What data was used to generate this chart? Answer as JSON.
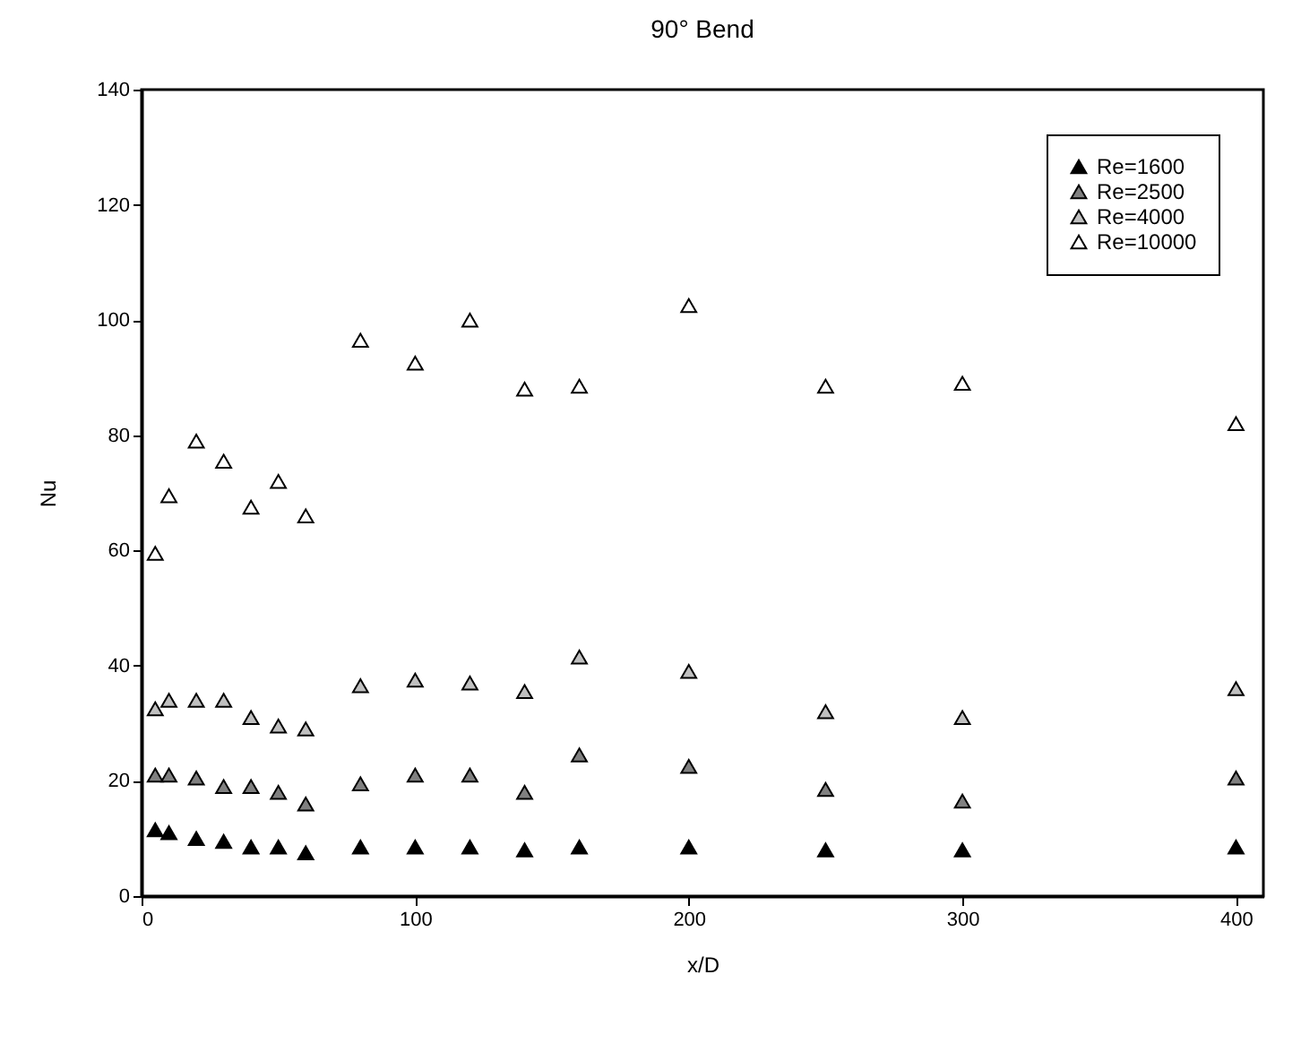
{
  "chart_data": {
    "type": "scatter",
    "title": "90° Bend",
    "xlabel": "x/D",
    "ylabel": "Nu",
    "x": [
      5,
      10,
      20,
      30,
      40,
      50,
      60,
      80,
      100,
      120,
      140,
      160,
      200,
      250,
      300,
      400
    ],
    "series": [
      {
        "name": "Re=1600",
        "color": "#000000",
        "values": [
          11.5,
          11,
          10,
          9.5,
          8.5,
          8.5,
          7.5,
          8.5,
          8.5,
          8.5,
          8,
          8.5,
          8.5,
          8,
          8,
          8.5
        ]
      },
      {
        "name": "Re=2500",
        "color": "#808080",
        "values": [
          21,
          21,
          20.5,
          19,
          19,
          18,
          16,
          19.5,
          21,
          21,
          18,
          24.5,
          22.5,
          18.5,
          16.5,
          20.5
        ]
      },
      {
        "name": "Re=4000",
        "color": "#c0c0c0",
        "values": [
          32.5,
          34,
          34,
          34,
          31,
          29.5,
          29,
          36.5,
          37.5,
          37,
          35.5,
          41.5,
          39,
          32,
          31,
          36
        ]
      },
      {
        "name": "Re=10000",
        "color": "#ffffff",
        "values": [
          59.5,
          69.5,
          79,
          75.5,
          67.5,
          72,
          66,
          96.5,
          92.5,
          100,
          88,
          88.5,
          102.5,
          88.5,
          89,
          82
        ]
      }
    ],
    "xlim": [
      0,
      410
    ],
    "xticks": [
      0,
      100,
      200,
      300,
      400
    ],
    "ylim": [
      0,
      140
    ],
    "yticks": [
      0,
      20,
      40,
      60,
      80,
      100,
      120,
      140
    ],
    "marker": "triangle",
    "legend": "top right"
  }
}
